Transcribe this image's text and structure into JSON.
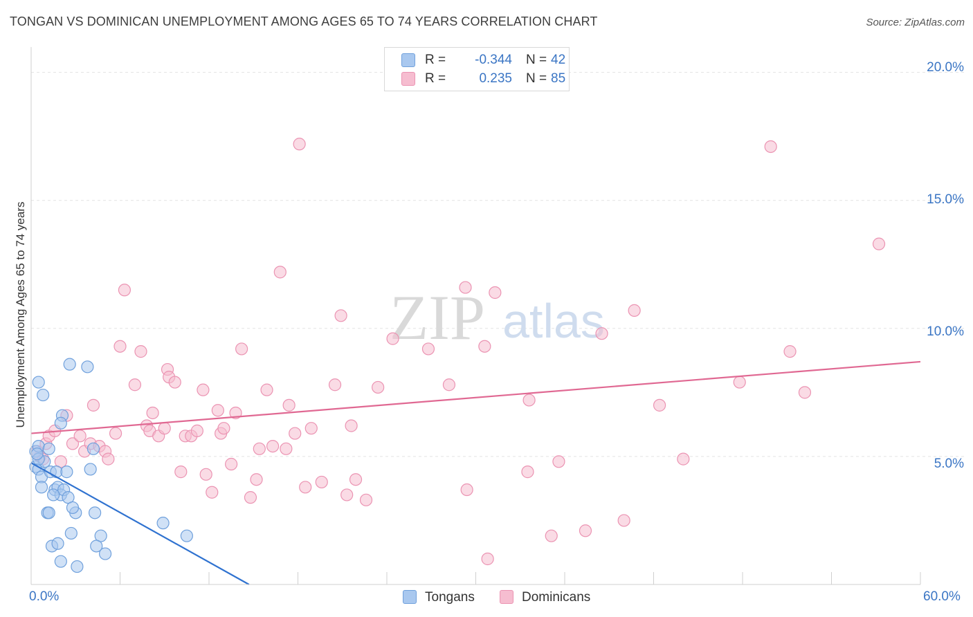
{
  "title": "TONGAN VS DOMINICAN UNEMPLOYMENT AMONG AGES 65 TO 74 YEARS CORRELATION CHART",
  "source": "Source: ZipAtlas.com",
  "watermark": {
    "zip": "ZIP",
    "atlas": "atlas"
  },
  "legend": {
    "tongans": {
      "r_label": "R =",
      "r_value": "-0.344",
      "n_label": "N =",
      "n_value": "42"
    },
    "dominicans": {
      "r_label": "R =",
      "r_value": "0.235",
      "n_label": "N =",
      "n_value": "85"
    }
  },
  "bottom_legend": {
    "tongans": "Tongans",
    "dominicans": "Dominicans"
  },
  "x_ticks": {
    "min": "0.0%",
    "max": "60.0%"
  },
  "y_ticks": {
    "t5": "5.0%",
    "t10": "10.0%",
    "t15": "15.0%",
    "t20": "20.0%"
  },
  "colors": {
    "tongan_fill": "#a9c8ef",
    "tongan_stroke": "#6fa0dc",
    "tongan_line": "#2f72d0",
    "dominican_fill": "#f6bdd0",
    "dominican_stroke": "#eb93b2",
    "dominican_line": "#e06892"
  },
  "chart_data": {
    "type": "scatter",
    "xlabel": "",
    "ylabel": "Unemployment Among Ages 65 to 74 years",
    "xlim": [
      0,
      60
    ],
    "ylim": [
      0,
      20.8
    ],
    "grid": true,
    "series": [
      {
        "name": "Tongans",
        "trend": {
          "x": [
            0,
            14.7
          ],
          "y": [
            4.75,
            0
          ]
        },
        "points": [
          [
            0.3,
            5.2
          ],
          [
            0.5,
            5.4
          ],
          [
            0.3,
            4.6
          ],
          [
            0.5,
            4.5
          ],
          [
            0.7,
            4.2
          ],
          [
            0.7,
            3.8
          ],
          [
            0.9,
            4.8
          ],
          [
            1.2,
            5.3
          ],
          [
            1.3,
            4.4
          ],
          [
            1.6,
            3.7
          ],
          [
            1.7,
            4.4
          ],
          [
            1.8,
            3.8
          ],
          [
            2.0,
            3.5
          ],
          [
            2.2,
            3.7
          ],
          [
            2.4,
            4.4
          ],
          [
            2.5,
            3.4
          ],
          [
            1.1,
            2.8
          ],
          [
            1.2,
            2.8
          ],
          [
            3.0,
            2.8
          ],
          [
            4.3,
            2.8
          ],
          [
            2.6,
            8.6
          ],
          [
            3.8,
            8.5
          ],
          [
            0.5,
            7.9
          ],
          [
            0.8,
            7.4
          ],
          [
            2.1,
            6.6
          ],
          [
            2.0,
            6.3
          ],
          [
            4.0,
            4.5
          ],
          [
            4.2,
            5.3
          ],
          [
            1.4,
            1.5
          ],
          [
            1.8,
            1.6
          ],
          [
            2.7,
            2.0
          ],
          [
            4.7,
            1.9
          ],
          [
            4.4,
            1.5
          ],
          [
            5.0,
            1.2
          ],
          [
            2.0,
            0.9
          ],
          [
            3.1,
            0.7
          ],
          [
            8.9,
            2.4
          ],
          [
            10.5,
            1.9
          ],
          [
            0.5,
            4.9
          ],
          [
            1.5,
            3.5
          ],
          [
            0.4,
            5.1
          ],
          [
            2.8,
            3.0
          ]
        ]
      },
      {
        "name": "Dominicans",
        "trend": {
          "x": [
            0,
            60
          ],
          "y": [
            5.9,
            8.7
          ]
        },
        "points": [
          [
            0.6,
            5.0
          ],
          [
            0.8,
            4.9
          ],
          [
            1.0,
            5.5
          ],
          [
            1.2,
            5.8
          ],
          [
            1.6,
            6.0
          ],
          [
            2.0,
            4.8
          ],
          [
            2.4,
            6.6
          ],
          [
            2.8,
            5.5
          ],
          [
            3.3,
            5.8
          ],
          [
            3.6,
            5.2
          ],
          [
            4.0,
            5.5
          ],
          [
            4.2,
            7.0
          ],
          [
            4.6,
            5.4
          ],
          [
            5.0,
            5.2
          ],
          [
            5.2,
            4.9
          ],
          [
            5.7,
            5.9
          ],
          [
            6.0,
            9.3
          ],
          [
            6.3,
            11.5
          ],
          [
            7.0,
            7.8
          ],
          [
            7.4,
            9.1
          ],
          [
            7.8,
            6.2
          ],
          [
            8.0,
            6.0
          ],
          [
            8.2,
            6.7
          ],
          [
            8.6,
            5.8
          ],
          [
            9.0,
            6.1
          ],
          [
            9.2,
            8.4
          ],
          [
            9.3,
            8.1
          ],
          [
            9.7,
            7.9
          ],
          [
            10.1,
            4.4
          ],
          [
            10.4,
            5.8
          ],
          [
            10.8,
            5.8
          ],
          [
            11.2,
            6.0
          ],
          [
            11.6,
            7.6
          ],
          [
            11.8,
            4.3
          ],
          [
            12.2,
            3.6
          ],
          [
            12.6,
            6.8
          ],
          [
            12.8,
            5.9
          ],
          [
            13.0,
            6.1
          ],
          [
            13.5,
            4.7
          ],
          [
            13.8,
            6.7
          ],
          [
            14.2,
            9.2
          ],
          [
            14.8,
            3.4
          ],
          [
            15.2,
            4.1
          ],
          [
            15.4,
            5.3
          ],
          [
            15.9,
            7.6
          ],
          [
            16.3,
            5.4
          ],
          [
            16.8,
            12.2
          ],
          [
            17.2,
            5.3
          ],
          [
            17.4,
            7.0
          ],
          [
            17.8,
            5.9
          ],
          [
            18.1,
            17.2
          ],
          [
            18.5,
            3.8
          ],
          [
            18.9,
            6.1
          ],
          [
            19.6,
            4.0
          ],
          [
            20.5,
            7.8
          ],
          [
            20.9,
            10.5
          ],
          [
            21.3,
            3.5
          ],
          [
            21.6,
            6.2
          ],
          [
            21.9,
            4.1
          ],
          [
            22.6,
            3.3
          ],
          [
            23.4,
            7.7
          ],
          [
            24.4,
            9.6
          ],
          [
            26.8,
            9.2
          ],
          [
            28.2,
            7.8
          ],
          [
            29.3,
            11.6
          ],
          [
            29.4,
            3.7
          ],
          [
            30.6,
            9.3
          ],
          [
            30.8,
            1.0
          ],
          [
            31.3,
            11.4
          ],
          [
            33.5,
            4.4
          ],
          [
            33.6,
            7.2
          ],
          [
            35.1,
            1.9
          ],
          [
            35.6,
            4.8
          ],
          [
            37.4,
            2.1
          ],
          [
            38.5,
            9.8
          ],
          [
            40.0,
            2.5
          ],
          [
            40.7,
            10.7
          ],
          [
            42.4,
            7.0
          ],
          [
            44.0,
            4.9
          ],
          [
            47.8,
            7.9
          ],
          [
            49.9,
            17.1
          ],
          [
            51.2,
            9.1
          ],
          [
            52.2,
            7.5
          ],
          [
            57.2,
            13.3
          ],
          [
            0.4,
            5.2
          ]
        ]
      }
    ]
  }
}
